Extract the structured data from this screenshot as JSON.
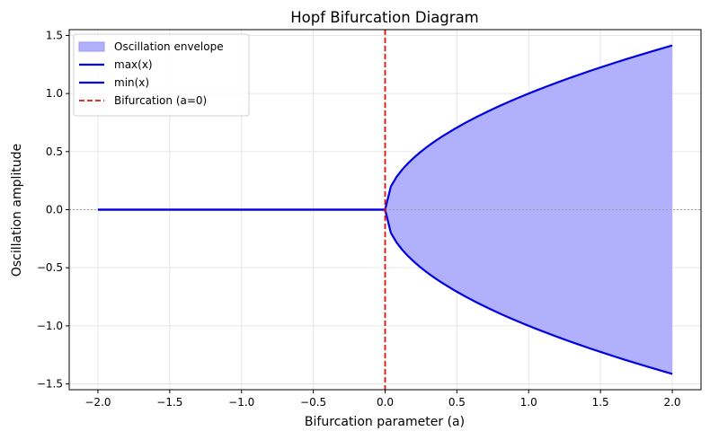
{
  "chart_data": {
    "type": "line",
    "title": "Hopf Bifurcation Diagram",
    "xlabel": "Bifurcation parameter (a)",
    "ylabel": "Oscillation amplitude",
    "xlim": [
      -2.2,
      2.2
    ],
    "ylim": [
      -1.55,
      1.55
    ],
    "xticks": [
      -2.0,
      -1.5,
      -1.0,
      -0.5,
      0.0,
      0.5,
      1.0,
      1.5,
      2.0
    ],
    "yticks": [
      -1.5,
      -1.0,
      -0.5,
      0.0,
      0.5,
      1.0,
      1.5
    ],
    "xtick_labels": [
      "−2.0",
      "−1.5",
      "−1.0",
      "−0.5",
      "0.0",
      "0.5",
      "1.0",
      "1.5",
      "2.0"
    ],
    "ytick_labels": [
      "−1.5",
      "−1.0",
      "−0.5",
      "0.0",
      "0.5",
      "1.0",
      "1.5"
    ],
    "grid": true,
    "legend_position": "upper-left",
    "legend": [
      {
        "label": "Oscillation envelope",
        "kind": "patch",
        "color": "#b0b0fd"
      },
      {
        "label": "max(x)",
        "kind": "line",
        "color": "#0000e0"
      },
      {
        "label": "min(x)",
        "kind": "line",
        "color": "#0000e0"
      },
      {
        "label": "Bifurcation (a=0)",
        "kind": "dashed",
        "color": "#e01010"
      }
    ],
    "series": [
      {
        "name": "max(x)",
        "formula": "sqrt(max(a,0))",
        "color": "#0000e0"
      },
      {
        "name": "min(x)",
        "formula": "-sqrt(max(a,0))",
        "color": "#0000e0"
      }
    ],
    "x": [
      -2.0,
      -1.92,
      -1.84,
      -1.76,
      -1.68,
      -1.6,
      -1.52,
      -1.44,
      -1.36,
      -1.28,
      -1.2,
      -1.12,
      -1.04,
      -0.96,
      -0.88,
      -0.8,
      -0.72,
      -0.64,
      -0.56,
      -0.48,
      -0.4,
      -0.32,
      -0.24,
      -0.16,
      -0.08,
      0.0,
      0.04,
      0.08,
      0.12,
      0.16,
      0.2,
      0.24,
      0.28,
      0.32,
      0.36,
      0.4,
      0.48,
      0.56,
      0.64,
      0.72,
      0.8,
      0.88,
      0.96,
      1.04,
      1.12,
      1.2,
      1.28,
      1.36,
      1.44,
      1.52,
      1.6,
      1.68,
      1.76,
      1.84,
      1.92,
      2.0
    ],
    "bifurcation_x": 0.0,
    "baseline_y": 0.0,
    "colors": {
      "envelope": "#b0b0fd",
      "line": "#0000e0",
      "bifurcation": "#e01010",
      "baseline": "#a0a0a0",
      "grid": "#e6e6e6"
    }
  }
}
